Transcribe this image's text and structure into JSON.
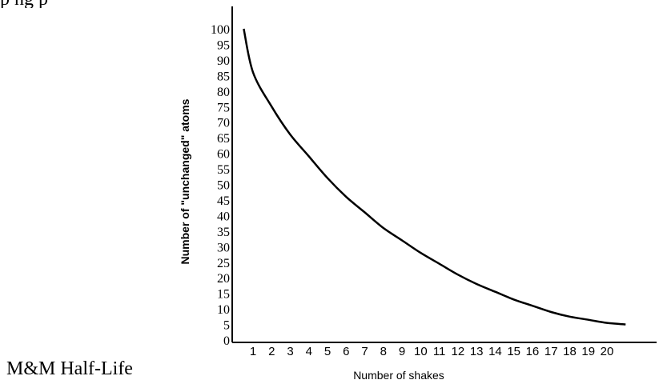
{
  "header_text": "p     ng  p",
  "caption": "M&M Half-Life",
  "chart_data": {
    "type": "line",
    "title": "",
    "xlabel": "Number of shakes",
    "ylabel": "Number of \"unchanged\" atoms",
    "xlim": [
      0,
      22
    ],
    "ylim": [
      0,
      105
    ],
    "x_ticks": [
      1,
      2,
      3,
      4,
      5,
      6,
      7,
      8,
      9,
      10,
      11,
      12,
      13,
      14,
      15,
      16,
      17,
      18,
      19,
      20
    ],
    "y_ticks": [
      0,
      5,
      10,
      15,
      20,
      25,
      30,
      35,
      40,
      45,
      50,
      55,
      60,
      65,
      70,
      75,
      80,
      85,
      90,
      95,
      100
    ],
    "series": [
      {
        "x": [
          0.5,
          1,
          2,
          3,
          4,
          5,
          6,
          7,
          8,
          9,
          10,
          11,
          12,
          13,
          14,
          15,
          16,
          17,
          18,
          19,
          20,
          21
        ],
        "values": [
          100,
          86,
          75,
          66,
          59,
          52,
          46,
          41,
          36,
          32,
          28,
          24.5,
          21,
          18,
          15.5,
          13,
          11,
          9,
          7.5,
          6.5,
          5.5,
          5
        ]
      }
    ]
  }
}
